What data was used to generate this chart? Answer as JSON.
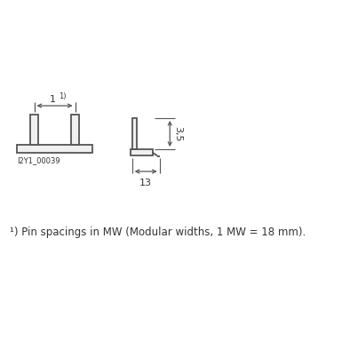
{
  "bg_color": "#ffffff",
  "line_color": "#555555",
  "text_color": "#333333",
  "fig_width": 3.85,
  "fig_height": 3.85,
  "dpi": 100,
  "footnote": "¹⁾ Pin spacings in MW (Modular widths, 1 MW = 18 mm).",
  "label_id": "I2Y1_00039",
  "dim_1_label": "1",
  "dim_1_sup": "1)",
  "dim_13_label": "13",
  "dim_35_label": "3,5"
}
